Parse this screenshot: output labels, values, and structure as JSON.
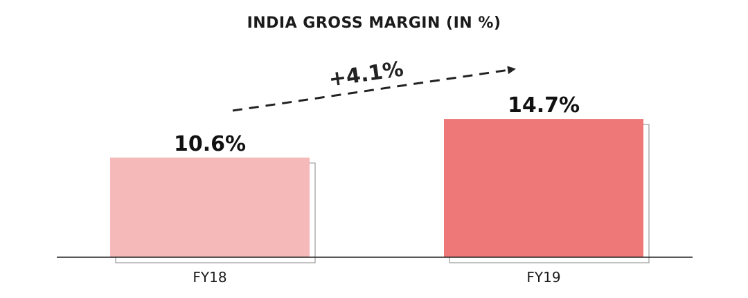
{
  "chart_data": {
    "type": "bar",
    "title": "INDIA GROSS MARGIN (IN %)",
    "categories": [
      "FY18",
      "FY19"
    ],
    "values": [
      10.6,
      14.7
    ],
    "value_labels": [
      "10.6%",
      "14.7%"
    ],
    "bar_colors": [
      "#f4b9b8",
      "#ee7877"
    ],
    "annotation": {
      "text": "+4.1%",
      "style": "dashed-arrow"
    },
    "xlabel": "",
    "ylabel": "",
    "grid": false,
    "legend": "none"
  }
}
